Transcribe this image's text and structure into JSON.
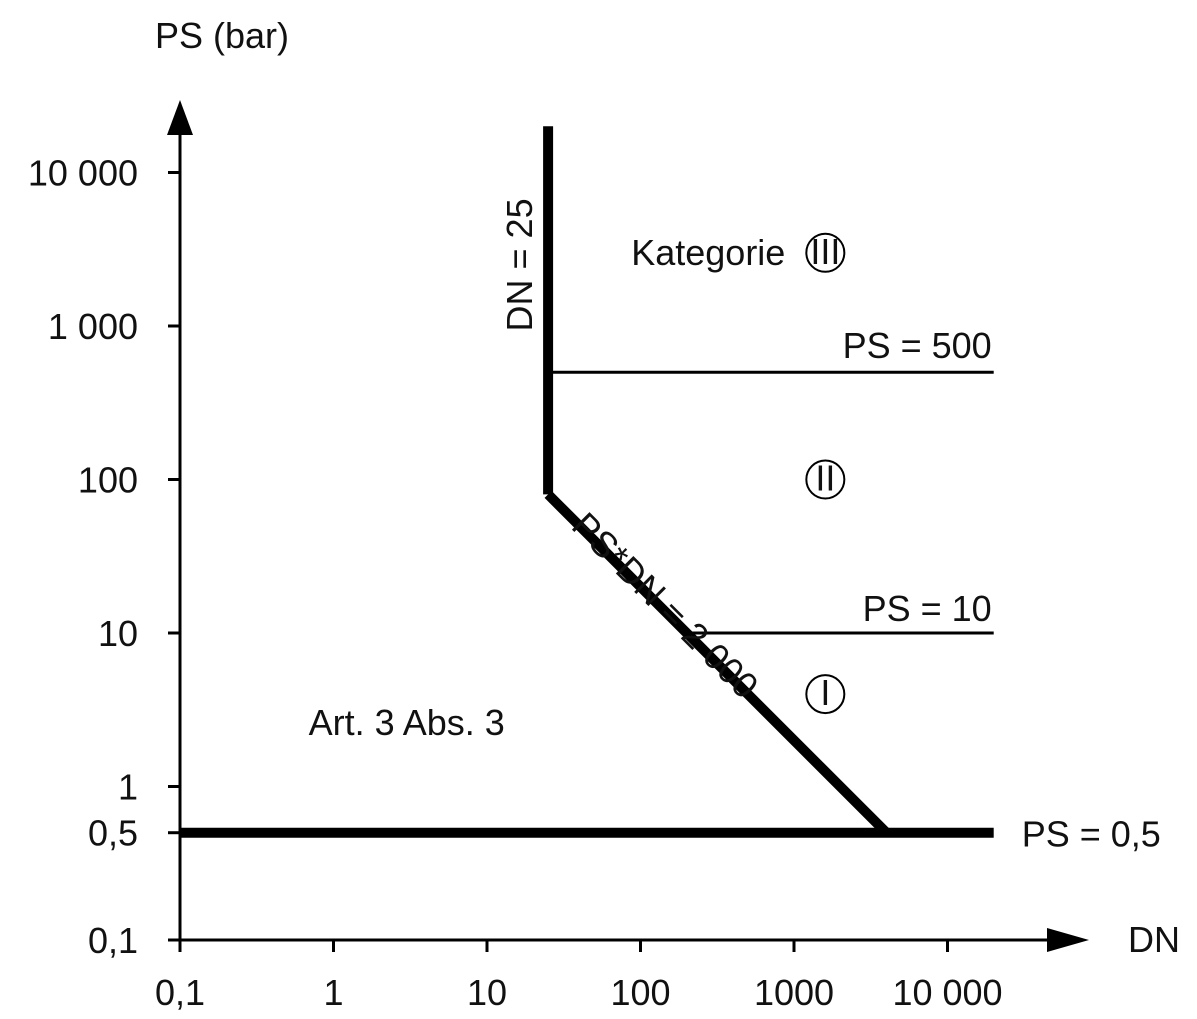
{
  "chart_data": {
    "type": "line",
    "title": "",
    "x_axis": {
      "label": "DN",
      "scale": "log",
      "range": [
        0.1,
        20000
      ],
      "ticks": [
        {
          "value": 0.1,
          "label": "0,1"
        },
        {
          "value": 1,
          "label": "1"
        },
        {
          "value": 10,
          "label": "10"
        },
        {
          "value": 100,
          "label": "100"
        },
        {
          "value": 1000,
          "label": "1000"
        },
        {
          "value": 10000,
          "label": "10 000"
        }
      ]
    },
    "y_axis": {
      "label": "PS (bar)",
      "scale": "log",
      "range": [
        0.1,
        20000
      ],
      "ticks": [
        {
          "value": 0.1,
          "label": "0,1"
        },
        {
          "value": 0.5,
          "label": "0,5"
        },
        {
          "value": 1,
          "label": "1"
        },
        {
          "value": 10,
          "label": "10"
        },
        {
          "value": 100,
          "label": "100"
        },
        {
          "value": 1000,
          "label": "1 000"
        },
        {
          "value": 10000,
          "label": "10 000"
        }
      ]
    },
    "series": [
      {
        "label": "DN = 25",
        "style": "thick",
        "points": [
          [
            25,
            20000
          ],
          [
            25,
            80
          ]
        ]
      },
      {
        "label": "PS*DN = 2 000",
        "style": "thick",
        "points": [
          [
            25,
            80
          ],
          [
            4000,
            0.5
          ]
        ]
      },
      {
        "label": "PS = 0,5",
        "style": "thick",
        "points": [
          [
            0.1,
            0.5
          ],
          [
            20000,
            0.5
          ]
        ]
      },
      {
        "label": "PS = 500",
        "style": "thin",
        "points": [
          [
            25,
            500
          ],
          [
            20000,
            500
          ]
        ]
      },
      {
        "label": "PS = 10",
        "style": "thin",
        "points": [
          [
            200,
            10
          ],
          [
            20000,
            10
          ]
        ]
      }
    ],
    "regions": [
      {
        "label": "Kategorie",
        "symbol": "III",
        "at": [
          1600,
          3000
        ]
      },
      {
        "symbol": "II",
        "at": [
          1600,
          100
        ]
      },
      {
        "symbol": "I",
        "at": [
          1600,
          4
        ]
      },
      {
        "label": "Art. 3 Abs. 3",
        "at": [
          3,
          2.6
        ]
      }
    ],
    "grid": false,
    "legend": "none",
    "colors": {
      "lines": "#000000",
      "text": "#111111",
      "background": "#ffffff"
    }
  }
}
